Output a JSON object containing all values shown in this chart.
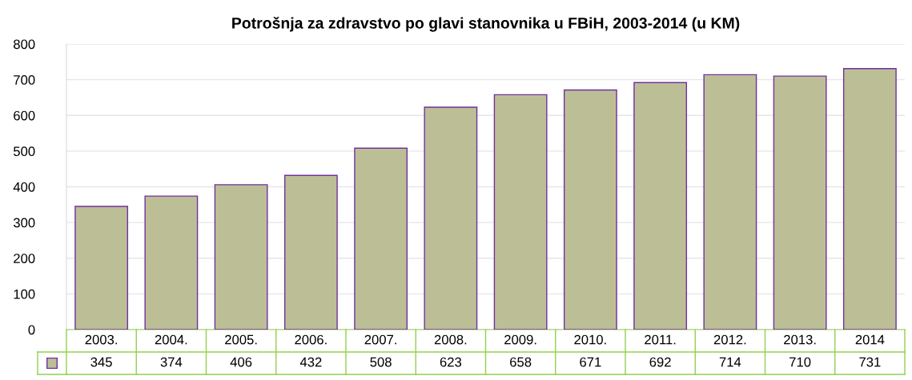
{
  "chart_data": {
    "type": "bar",
    "title": "Potrošnja za zdravstvo po glavi stanovnika u FBiH, 2003-2014 (u KM)",
    "categories": [
      "2003.",
      "2004.",
      "2005.",
      "2006.",
      "2007.",
      "2008.",
      "2009.",
      "2010.",
      "2011.",
      "2012.",
      "2013.",
      "2014"
    ],
    "values": [
      345,
      374,
      406,
      432,
      508,
      623,
      658,
      671,
      692,
      714,
      710,
      731
    ],
    "color": "#bcbf96",
    "ylim": [
      0,
      800
    ],
    "yticks": [
      0,
      100,
      200,
      300,
      400,
      500,
      600,
      700,
      800
    ],
    "grid": "y",
    "data_labels": true
  }
}
